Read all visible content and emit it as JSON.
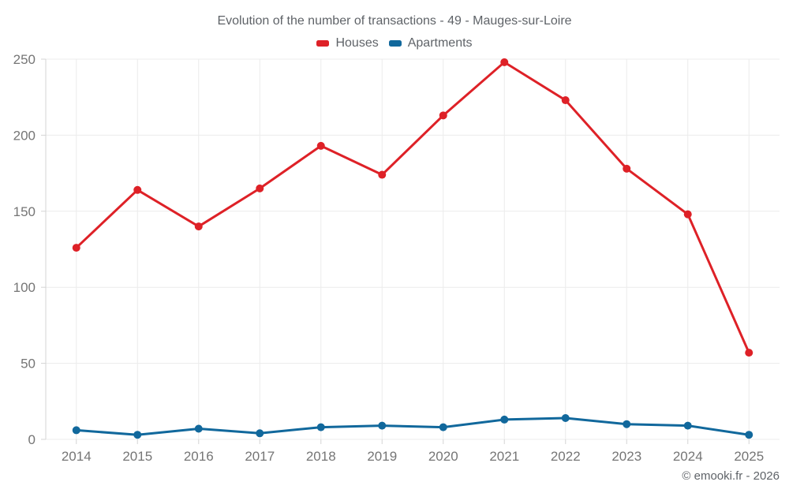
{
  "chart": {
    "title": "Evolution of the number of transactions - 49 - Mauges-sur-Loire"
  },
  "footer": {
    "copyright": "© emooki.fr - 2026"
  },
  "chart_data": {
    "type": "line",
    "title": "Evolution of the number of transactions - 49 - Mauges-sur-Loire",
    "categories": [
      "2014",
      "2015",
      "2016",
      "2017",
      "2018",
      "2019",
      "2020",
      "2021",
      "2022",
      "2023",
      "2024",
      "2025"
    ],
    "series": [
      {
        "name": "Houses",
        "color": "#de2127",
        "values": [
          126,
          164,
          140,
          165,
          193,
          174,
          213,
          248,
          223,
          178,
          148,
          57
        ]
      },
      {
        "name": "Apartments",
        "color": "#11689c",
        "values": [
          6,
          3,
          7,
          4,
          8,
          9,
          8,
          13,
          14,
          10,
          9,
          3
        ]
      }
    ],
    "xlabel": "",
    "ylabel": "",
    "ylim": [
      0,
      250
    ],
    "yticks": [
      0,
      50,
      100,
      150,
      200,
      250
    ],
    "grid": true,
    "grid_color": "#ececec",
    "axis_color": "#d4d4d4",
    "legend_position": "top"
  }
}
